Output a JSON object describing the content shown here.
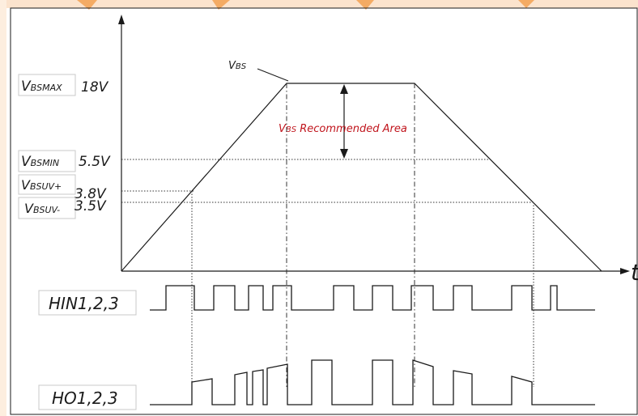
{
  "colors": {
    "background": "#ffffff",
    "watermark": "#f39c4a",
    "line": "#1a1a1a",
    "dashed": "#333333",
    "annotation_red": "#c0141c",
    "label_box_border": "#c8c8c8"
  },
  "axis": {
    "time_label": "t"
  },
  "vbs": {
    "curve_label": "VBS",
    "curve_label_main": "V",
    "curve_label_sub": "BS",
    "recommended_main": "V",
    "recommended_sub": "BS",
    "recommended_text": " Recommended Area"
  },
  "levels": [
    {
      "id": "vbsmax",
      "main": "V",
      "sub": "BSMAX",
      "value": "18V"
    },
    {
      "id": "vbsmin",
      "main": "V",
      "sub": "BSMIN",
      "value": "5.5V"
    },
    {
      "id": "vbsuvp",
      "main": "V",
      "sub": "BSUV+",
      "value": "3.8V"
    },
    {
      "id": "vbsuvm",
      "main": "V",
      "sub": "BSUV-",
      "value": "3.5V"
    }
  ],
  "signals": {
    "hin_label": "HIN1,2,3",
    "ho_label": "HO1,2,3"
  }
}
